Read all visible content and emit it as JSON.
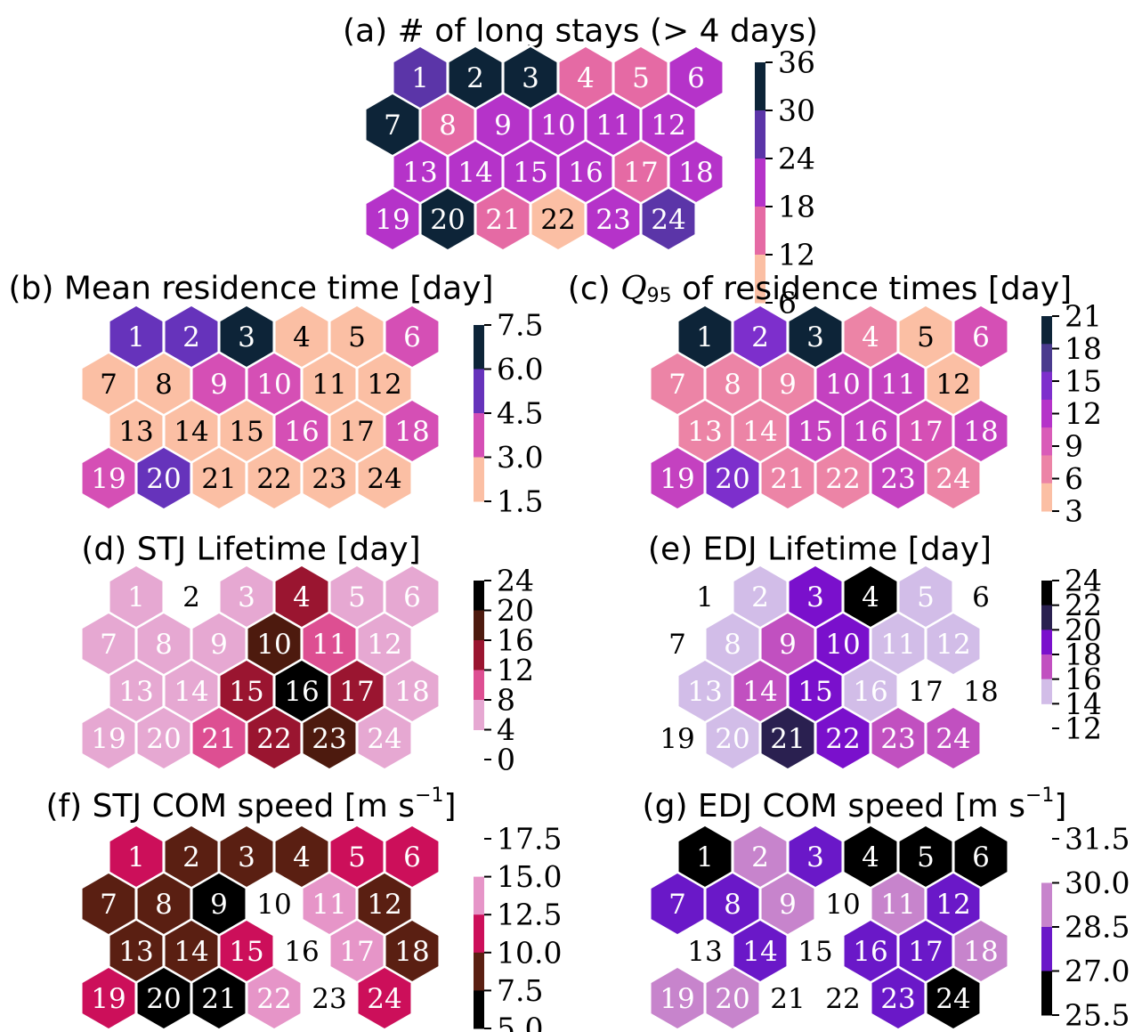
{
  "chart_data": [
    {
      "id": "a",
      "type": "heatmap",
      "title": "(a) # of long stays (> 4 days)",
      "cells": [
        1,
        2,
        3,
        4,
        5,
        6,
        7,
        8,
        9,
        10,
        11,
        12,
        13,
        14,
        15,
        16,
        17,
        18,
        19,
        20,
        21,
        22,
        23,
        24
      ],
      "colorbar": {
        "ticks": [
          "36",
          "30",
          "24",
          "18",
          "12",
          "6"
        ],
        "colors": [
          "#0d2438",
          "#5b35a8",
          "#b533c9",
          "#e56aa4",
          "#fbbfa4"
        ]
      },
      "cell_colors": [
        "#5b35a8",
        "#0d2438",
        "#0d2438",
        "#e56aa4",
        "#e56aa4",
        "#b533c9",
        "#0d2438",
        "#e56aa4",
        "#b533c9",
        "#b533c9",
        "#b533c9",
        "#b533c9",
        "#b533c9",
        "#b533c9",
        "#b533c9",
        "#b533c9",
        "#e56aa4",
        "#b533c9",
        "#b533c9",
        "#0d2438",
        "#e56aa4",
        "#fbbfa4",
        "#b533c9",
        "#5b35a8"
      ],
      "label_colors": [
        "#fff",
        "#fff",
        "#fff",
        "#fff",
        "#fff",
        "#fff",
        "#fff",
        "#fff",
        "#fff",
        "#fff",
        "#fff",
        "#fff",
        "#fff",
        "#fff",
        "#fff",
        "#fff",
        "#fff",
        "#fff",
        "#fff",
        "#fff",
        "#fff",
        "#000",
        "#fff",
        "#fff"
      ]
    },
    {
      "id": "b",
      "type": "heatmap",
      "title": "(b) Mean residence time [day]",
      "cells": [
        1,
        2,
        3,
        4,
        5,
        6,
        7,
        8,
        9,
        10,
        11,
        12,
        13,
        14,
        15,
        16,
        17,
        18,
        19,
        20,
        21,
        22,
        23,
        24
      ],
      "colorbar": {
        "ticks": [
          "7.5",
          "6.0",
          "4.5",
          "3.0",
          "1.5"
        ],
        "colors": [
          "#0d2438",
          "#6633bb",
          "#d54fb5",
          "#fbbfa4"
        ]
      },
      "cell_colors": [
        "#6633bb",
        "#6633bb",
        "#0d2438",
        "#fbbfa4",
        "#fbbfa4",
        "#d54fb5",
        "#fbbfa4",
        "#fbbfa4",
        "#d54fb5",
        "#d54fb5",
        "#fbbfa4",
        "#fbbfa4",
        "#fbbfa4",
        "#fbbfa4",
        "#fbbfa4",
        "#d54fb5",
        "#fbbfa4",
        "#d54fb5",
        "#d54fb5",
        "#6633bb",
        "#fbbfa4",
        "#fbbfa4",
        "#fbbfa4",
        "#fbbfa4"
      ],
      "label_colors": [
        "#fff",
        "#fff",
        "#fff",
        "#000",
        "#000",
        "#fff",
        "#000",
        "#000",
        "#fff",
        "#fff",
        "#000",
        "#000",
        "#000",
        "#000",
        "#000",
        "#fff",
        "#000",
        "#fff",
        "#fff",
        "#fff",
        "#000",
        "#000",
        "#000",
        "#000"
      ]
    },
    {
      "id": "c",
      "type": "heatmap",
      "title": "(c) Q95 of residence times [day]",
      "title_parts": [
        "(c) ",
        "Q",
        "95",
        " of residence times [day]"
      ],
      "cells": [
        1,
        2,
        3,
        4,
        5,
        6,
        7,
        8,
        9,
        10,
        11,
        12,
        13,
        14,
        15,
        16,
        17,
        18,
        19,
        20,
        21,
        22,
        23,
        24
      ],
      "colorbar": {
        "ticks": [
          "21",
          "18",
          "15",
          "12",
          "9",
          "6",
          "3"
        ],
        "colors": [
          "#0d2438",
          "#4a3a8e",
          "#7d2fcc",
          "#b533c9",
          "#d95cb8",
          "#ec84a6",
          "#fbbfa4"
        ]
      },
      "cell_colors": [
        "#0d2438",
        "#7d2fcc",
        "#0d2438",
        "#ec84a6",
        "#fbbfa4",
        "#d54fb5",
        "#ec84a6",
        "#ec84a6",
        "#ec84a6",
        "#c441c0",
        "#c441c0",
        "#fbbfa4",
        "#ec84a6",
        "#ec84a6",
        "#c441c0",
        "#c441c0",
        "#d54fb5",
        "#c441c0",
        "#c441c0",
        "#7d2fcc",
        "#ec84a6",
        "#ec84a6",
        "#c441c0",
        "#ec84a6"
      ],
      "label_colors": [
        "#fff",
        "#fff",
        "#fff",
        "#fff",
        "#000",
        "#fff",
        "#fff",
        "#fff",
        "#fff",
        "#fff",
        "#fff",
        "#000",
        "#fff",
        "#fff",
        "#fff",
        "#fff",
        "#fff",
        "#fff",
        "#fff",
        "#fff",
        "#fff",
        "#fff",
        "#fff",
        "#fff"
      ]
    },
    {
      "id": "d",
      "type": "heatmap",
      "title": "(d) STJ Lifetime [day]",
      "cells": [
        1,
        2,
        3,
        4,
        5,
        6,
        7,
        8,
        9,
        10,
        11,
        12,
        13,
        14,
        15,
        16,
        17,
        18,
        19,
        20,
        21,
        22,
        23,
        24
      ],
      "colorbar": {
        "ticks": [
          "24",
          "20",
          "16",
          "12",
          "8",
          "4",
          "0"
        ],
        "colors": [
          "#000000",
          "#4d1a0e",
          "#9a1530",
          "#dd4f92",
          "#e6a8d2"
        ],
        "color_ticks_span": [
          0,
          5
        ]
      },
      "cell_colors": [
        "#e6a8d2",
        null,
        "#e6a8d2",
        "#9a1530",
        "#e6a8d2",
        "#e6a8d2",
        "#e6a8d2",
        "#e6a8d2",
        "#e6a8d2",
        "#4d1a0e",
        "#dd4f92",
        "#e6a8d2",
        "#e6a8d2",
        "#e6a8d2",
        "#9a1530",
        "#000000",
        "#9a1530",
        "#e6a8d2",
        "#e6a8d2",
        "#e6a8d2",
        "#dd4f92",
        "#9a1530",
        "#4d1a0e",
        "#e6a8d2"
      ],
      "label_colors": [
        "#fff",
        "#000",
        "#fff",
        "#fff",
        "#fff",
        "#fff",
        "#fff",
        "#fff",
        "#fff",
        "#fff",
        "#fff",
        "#fff",
        "#fff",
        "#fff",
        "#fff",
        "#fff",
        "#fff",
        "#fff",
        "#fff",
        "#fff",
        "#fff",
        "#fff",
        "#fff",
        "#fff"
      ]
    },
    {
      "id": "e",
      "type": "heatmap",
      "title": "(e) EDJ Lifetime [day]",
      "cells": [
        1,
        2,
        3,
        4,
        5,
        6,
        7,
        8,
        9,
        10,
        11,
        12,
        13,
        14,
        15,
        16,
        17,
        18,
        19,
        20,
        21,
        22,
        23,
        24
      ],
      "colorbar": {
        "ticks": [
          "24",
          "22",
          "20",
          "18",
          "16",
          "14",
          "12"
        ],
        "colors": [
          "#000000",
          "#2a2050",
          "#7a10cc",
          "#c150c0",
          "#d2bde8"
        ],
        "color_ticks_span": [
          0,
          5
        ]
      },
      "cell_colors": [
        null,
        "#d2bde8",
        "#7a10cc",
        "#000000",
        "#d2bde8",
        null,
        null,
        "#d2bde8",
        "#c150c0",
        "#7a10cc",
        "#d2bde8",
        "#d2bde8",
        "#d2bde8",
        "#c150c0",
        "#7a10cc",
        "#d2bde8",
        null,
        null,
        null,
        "#d2bde8",
        "#2a2050",
        "#7a10cc",
        "#c150c0",
        "#c150c0"
      ],
      "label_colors": [
        "#000",
        "#fff",
        "#fff",
        "#fff",
        "#fff",
        "#000",
        "#000",
        "#fff",
        "#fff",
        "#fff",
        "#fff",
        "#fff",
        "#fff",
        "#fff",
        "#fff",
        "#fff",
        "#000",
        "#000",
        "#000",
        "#fff",
        "#fff",
        "#fff",
        "#fff",
        "#fff"
      ]
    },
    {
      "id": "f",
      "type": "heatmap",
      "title": "(f) STJ COM speed [m s^-1]",
      "title_parts": [
        "(f) STJ COM speed [m  s",
        "−1",
        "]"
      ],
      "cells": [
        1,
        2,
        3,
        4,
        5,
        6,
        7,
        8,
        9,
        10,
        11,
        12,
        13,
        14,
        15,
        16,
        17,
        18,
        19,
        20,
        21,
        22,
        23,
        24
      ],
      "colorbar": {
        "ticks": [
          "17.5",
          "15.0",
          "12.5",
          "10.0",
          "7.5",
          "5.0"
        ],
        "colors": [
          "#e695c8",
          "#cc0f5a",
          "#5a1f12",
          "#000000"
        ],
        "color_ticks_span": [
          1,
          5
        ]
      },
      "cell_colors": [
        "#cc0f5a",
        "#5a1f12",
        "#5a1f12",
        "#5a1f12",
        "#cc0f5a",
        "#cc0f5a",
        "#5a1f12",
        "#5a1f12",
        "#000000",
        null,
        "#e695c8",
        "#5a1f12",
        "#5a1f12",
        "#5a1f12",
        "#cc0f5a",
        null,
        "#e695c8",
        "#5a1f12",
        "#cc0f5a",
        "#000000",
        "#000000",
        "#e695c8",
        null,
        "#cc0f5a"
      ],
      "label_colors": [
        "#fff",
        "#fff",
        "#fff",
        "#fff",
        "#fff",
        "#fff",
        "#fff",
        "#fff",
        "#fff",
        "#000",
        "#fff",
        "#fff",
        "#fff",
        "#fff",
        "#fff",
        "#000",
        "#fff",
        "#fff",
        "#fff",
        "#fff",
        "#fff",
        "#fff",
        "#000",
        "#fff"
      ]
    },
    {
      "id": "g",
      "type": "heatmap",
      "title": "(g) EDJ COM speed [m s^-1]",
      "title_parts": [
        "(g) EDJ COM speed [m  s",
        "−1",
        "]"
      ],
      "cells": [
        1,
        2,
        3,
        4,
        5,
        6,
        7,
        8,
        9,
        10,
        11,
        12,
        13,
        14,
        15,
        16,
        17,
        18,
        19,
        20,
        21,
        22,
        23,
        24
      ],
      "colorbar": {
        "ticks": [
          "31.5",
          "30.0",
          "28.5",
          "27.0",
          "25.5"
        ],
        "colors": [
          "#c784cc",
          "#6a18c8",
          "#000000"
        ],
        "color_ticks_span": [
          1,
          4
        ]
      },
      "cell_colors": [
        "#000000",
        "#c784cc",
        "#6a18c8",
        "#000000",
        "#000000",
        "#000000",
        "#6a18c8",
        "#6a18c8",
        "#c784cc",
        null,
        "#c784cc",
        "#6a18c8",
        null,
        "#6a18c8",
        null,
        "#6a18c8",
        "#6a18c8",
        "#c784cc",
        "#c784cc",
        "#c784cc",
        null,
        null,
        "#6a18c8",
        "#000000"
      ],
      "label_colors": [
        "#fff",
        "#fff",
        "#fff",
        "#fff",
        "#fff",
        "#fff",
        "#fff",
        "#fff",
        "#fff",
        "#000",
        "#fff",
        "#fff",
        "#000",
        "#fff",
        "#000",
        "#fff",
        "#fff",
        "#fff",
        "#fff",
        "#fff",
        "#000",
        "#000",
        "#fff",
        "#fff"
      ]
    }
  ]
}
